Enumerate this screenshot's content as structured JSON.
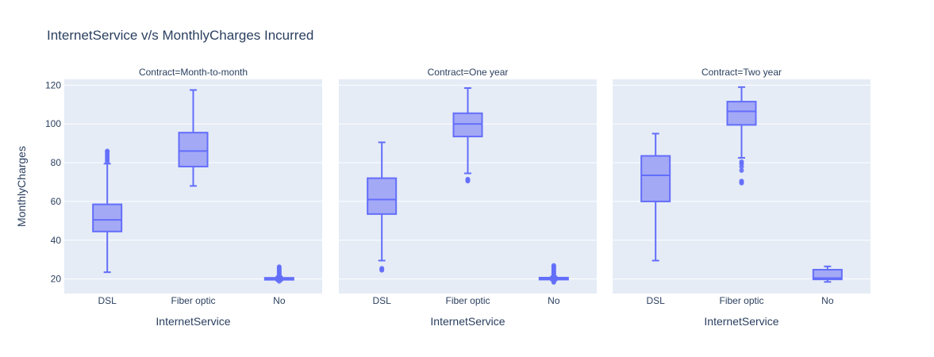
{
  "chart_data": {
    "type": "box",
    "title": "InternetService v/s MonthlyCharges Incurred",
    "xlabel": "InternetService",
    "ylabel": "MonthlyCharges",
    "ylim": [
      12.5,
      123
    ],
    "yticks": [
      "20",
      "40",
      "60",
      "80",
      "100",
      "120"
    ],
    "categories": [
      "DSL",
      "Fiber optic",
      "No"
    ],
    "colors": {
      "box_line": "#636efa",
      "box_fill": "#a4a9f6",
      "plot_bg": "#e5ecf6",
      "grid": "#ffffff",
      "text": "#2a3f5f"
    },
    "facets": [
      {
        "label": "Contract=Month-to-month",
        "boxes": [
          {
            "category": "DSL",
            "lower_fence": 23.5,
            "q1": 44.5,
            "median": 50.5,
            "q3": 58.5,
            "upper_fence": 79.5,
            "outliers": [
              80.5,
              81.5,
              82.5,
              83.5,
              84.5,
              85.5,
              86.0
            ]
          },
          {
            "category": "Fiber optic",
            "lower_fence": 68,
            "q1": 78,
            "median": 86,
            "q3": 95.5,
            "upper_fence": 117.5,
            "outliers": []
          },
          {
            "category": "No",
            "lower_fence": 19,
            "q1": 19.6,
            "median": 20.1,
            "q3": 20.6,
            "upper_fence": 21.3,
            "outliers": [
              18.8,
              21.6,
              22.2,
              22.8,
              23.4,
              24.0,
              24.6,
              25.2,
              25.8,
              26.3
            ]
          }
        ]
      },
      {
        "label": "Contract=One year",
        "boxes": [
          {
            "category": "DSL",
            "lower_fence": 29.5,
            "q1": 53.5,
            "median": 61,
            "q3": 72,
            "upper_fence": 90.5,
            "outliers": [
              24.5,
              25.0,
              25.5
            ]
          },
          {
            "category": "Fiber optic",
            "lower_fence": 74.5,
            "q1": 93.5,
            "median": 100,
            "q3": 105.5,
            "upper_fence": 118.5,
            "outliers": [
              70.5,
              71.0,
              71.5
            ]
          },
          {
            "category": "No",
            "lower_fence": 19.2,
            "q1": 19.7,
            "median": 20.2,
            "q3": 20.7,
            "upper_fence": 21.3,
            "outliers": [
              18.3,
              18.8,
              21.6,
              22.2,
              22.8,
              23.4,
              24.0,
              24.6,
              25.2,
              25.8,
              26.4,
              27.0
            ]
          }
        ]
      },
      {
        "label": "Contract=Two year",
        "boxes": [
          {
            "category": "DSL",
            "lower_fence": 29.5,
            "q1": 60,
            "median": 73.5,
            "q3": 83.5,
            "upper_fence": 95,
            "outliers": []
          },
          {
            "category": "Fiber optic",
            "lower_fence": 82.5,
            "q1": 99.5,
            "median": 106.5,
            "q3": 111.5,
            "upper_fence": 119,
            "outliers": [
              69.5,
              70.0,
              70.5,
              76.0,
              78.0,
              79.5,
              80.5
            ]
          },
          {
            "category": "No",
            "lower_fence": 18.5,
            "q1": 19.8,
            "median": 20.5,
            "q3": 24.8,
            "upper_fence": 26.5,
            "outliers": []
          }
        ]
      }
    ]
  }
}
